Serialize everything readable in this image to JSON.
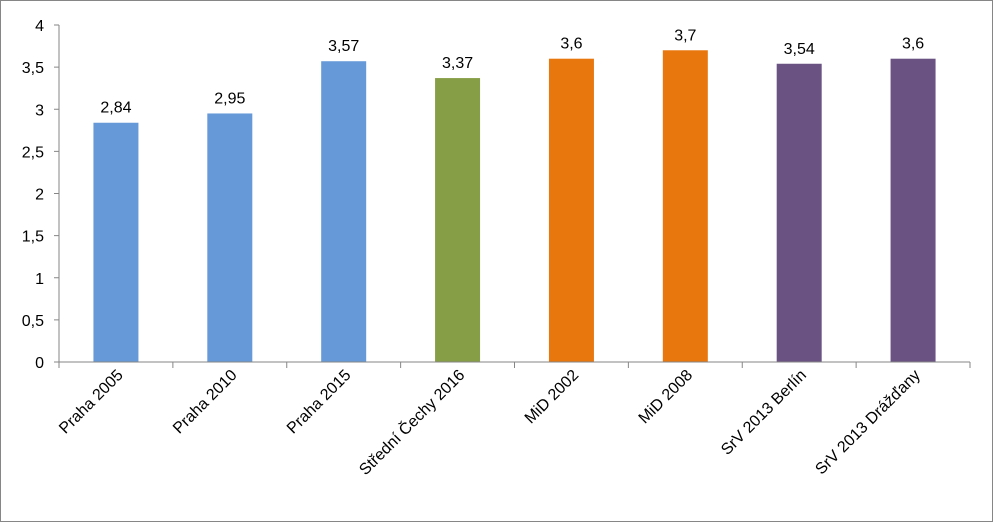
{
  "chart_data": {
    "type": "bar",
    "title": "",
    "xlabel": "",
    "ylabel": "",
    "ylim": [
      0,
      4
    ],
    "y_ticks": [
      "0",
      "0,5",
      "1",
      "1,5",
      "2",
      "2,5",
      "3",
      "3,5",
      "4"
    ],
    "grid": false,
    "legend": "none",
    "categories": [
      "Praha 2005",
      "Praha 2010",
      "Praha 2015",
      "Střední Čechy 2016",
      "MiD 2002",
      "MiD 2008",
      "SrV 2013 Berlín",
      "SrV 2013 Drážďany"
    ],
    "values": [
      2.84,
      2.95,
      3.57,
      3.37,
      3.6,
      3.7,
      3.54,
      3.6
    ],
    "value_labels": [
      "2,84",
      "2,95",
      "3,57",
      "3,37",
      "3,6",
      "3,7",
      "3,54",
      "3,6"
    ],
    "bar_colors": [
      "#6699D8",
      "#6699D8",
      "#6699D8",
      "#869E46",
      "#E8770E",
      "#E8770E",
      "#6A5383",
      "#6A5383"
    ]
  }
}
